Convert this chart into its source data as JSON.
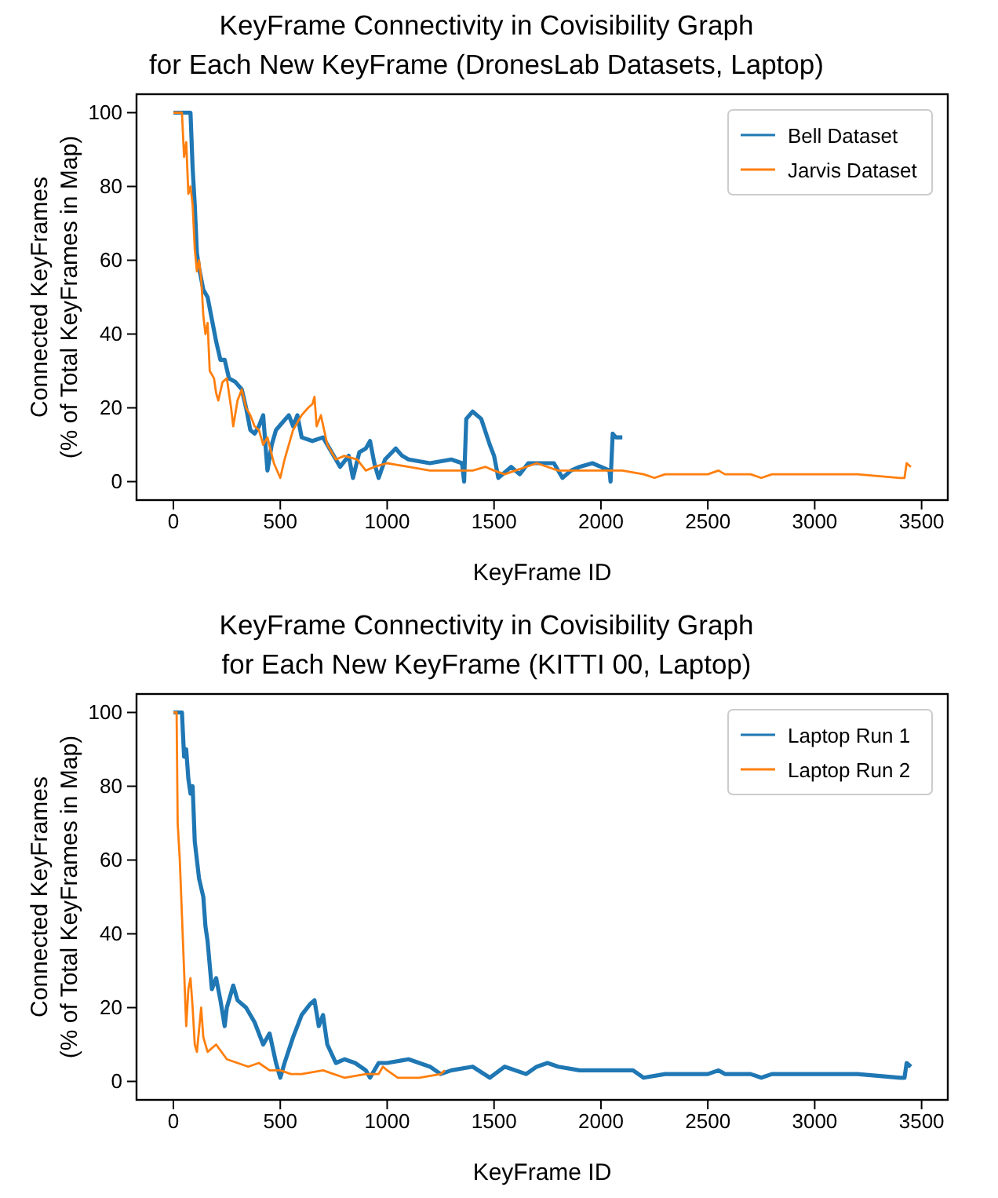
{
  "chart_data": [
    {
      "type": "line",
      "title": "KeyFrame Connectivity in Covisibility Graph\nfor Each New KeyFrame (DronesLab Datasets, Laptop)",
      "xlabel": "KeyFrame ID",
      "ylabel": "Connected KeyFrames\n(% of Total KeyFrames in Map)",
      "xlim": [
        -172.5,
        3622.5
      ],
      "ylim": [
        -5,
        105
      ],
      "xticks": [
        0,
        500,
        1000,
        1500,
        2000,
        2500,
        3000,
        3500
      ],
      "yticks": [
        0,
        20,
        40,
        60,
        80,
        100
      ],
      "legend": "top right",
      "grid": false,
      "line_style": "solid",
      "marker": "none",
      "series": [
        {
          "name": "Bell Dataset",
          "color": "#1f77b4",
          "x": [
            0,
            80,
            90,
            100,
            110,
            120,
            140,
            160,
            180,
            200,
            220,
            240,
            260,
            290,
            320,
            340,
            360,
            380,
            400,
            420,
            440,
            460,
            480,
            510,
            540,
            560,
            580,
            600,
            650,
            700,
            740,
            780,
            820,
            840,
            870,
            900,
            920,
            940,
            960,
            990,
            1040,
            1070,
            1100,
            1200,
            1300,
            1350,
            1360,
            1370,
            1400,
            1440,
            1480,
            1500,
            1520,
            1560,
            1580,
            1620,
            1660,
            1720,
            1780,
            1820,
            1860,
            1900,
            1960,
            2000,
            2040,
            2045,
            2055,
            2070,
            2100
          ],
          "values": [
            100,
            100,
            85,
            75,
            62,
            58,
            52,
            50,
            44,
            38,
            33,
            33,
            28,
            27,
            25,
            20,
            14,
            13,
            15,
            18,
            3,
            10,
            14,
            16,
            18,
            15,
            18,
            12,
            11,
            12,
            8,
            4,
            7,
            1,
            8,
            9,
            11,
            5,
            1,
            6,
            9,
            7,
            6,
            5,
            6,
            5,
            0,
            17,
            19,
            17,
            10,
            7,
            1,
            3,
            4,
            2,
            5,
            5,
            5,
            1,
            3,
            4,
            5,
            4,
            3,
            0,
            13,
            12,
            12
          ]
        },
        {
          "name": "Jarvis Dataset",
          "color": "#ff7f0e",
          "x": [
            0,
            40,
            50,
            60,
            70,
            80,
            90,
            100,
            110,
            120,
            130,
            140,
            150,
            160,
            170,
            190,
            200,
            210,
            230,
            250,
            270,
            280,
            300,
            320,
            340,
            360,
            380,
            400,
            420,
            440,
            470,
            500,
            520,
            560,
            600,
            630,
            650,
            660,
            670,
            690,
            720,
            760,
            800,
            860,
            900,
            940,
            1000,
            1100,
            1200,
            1300,
            1400,
            1460,
            1500,
            1550,
            1600,
            1650,
            1700,
            1750,
            1800,
            1900,
            2000,
            2100,
            2200,
            2250,
            2300,
            2500,
            2550,
            2580,
            2700,
            2750,
            2800,
            3000,
            3200,
            3400,
            3420,
            3430,
            3450
          ],
          "values": [
            100,
            100,
            88,
            92,
            78,
            80,
            75,
            63,
            57,
            60,
            55,
            45,
            40,
            43,
            30,
            28,
            24,
            22,
            27,
            28,
            20,
            15,
            22,
            25,
            20,
            18,
            15,
            14,
            10,
            12,
            5,
            1,
            6,
            14,
            18,
            20,
            21,
            23,
            15,
            18,
            10,
            6,
            7,
            6,
            3,
            4,
            5,
            4,
            3,
            3,
            3,
            4,
            3,
            2,
            3,
            4,
            5,
            4,
            3,
            3,
            3,
            3,
            2,
            1,
            2,
            2,
            3,
            2,
            2,
            1,
            2,
            2,
            2,
            1,
            1,
            5,
            4
          ]
        }
      ]
    },
    {
      "type": "line",
      "title": "KeyFrame Connectivity in Covisibility Graph\nfor Each New KeyFrame (KITTI 00, Laptop)",
      "xlabel": "KeyFrame ID",
      "ylabel": "Connected KeyFrames\n(% of Total KeyFrames in Map)",
      "xlim": [
        -172.5,
        3622.5
      ],
      "ylim": [
        -5,
        105
      ],
      "xticks": [
        0,
        500,
        1000,
        1500,
        2000,
        2500,
        3000,
        3500
      ],
      "yticks": [
        0,
        20,
        40,
        60,
        80,
        100
      ],
      "legend": "top right",
      "grid": false,
      "line_style": "solid",
      "marker": "none",
      "series": [
        {
          "name": "Laptop Run 1",
          "color": "#1f77b4",
          "x": [
            0,
            40,
            50,
            60,
            70,
            80,
            90,
            100,
            110,
            120,
            140,
            150,
            160,
            180,
            200,
            220,
            240,
            250,
            280,
            300,
            340,
            380,
            420,
            450,
            480,
            500,
            520,
            560,
            600,
            640,
            660,
            680,
            700,
            720,
            760,
            800,
            850,
            900,
            920,
            960,
            1000,
            1100,
            1200,
            1250,
            1300,
            1400,
            1480,
            1550,
            1650,
            1700,
            1750,
            1800,
            1900,
            2000,
            2150,
            2200,
            2300,
            2500,
            2550,
            2580,
            2700,
            2750,
            2800,
            3000,
            3200,
            3400,
            3420,
            3430,
            3450
          ],
          "values": [
            100,
            100,
            88,
            90,
            82,
            78,
            80,
            65,
            60,
            55,
            50,
            42,
            38,
            25,
            28,
            22,
            15,
            20,
            26,
            22,
            20,
            16,
            10,
            13,
            5,
            1,
            5,
            12,
            18,
            21,
            22,
            15,
            18,
            10,
            5,
            6,
            5,
            3,
            1,
            5,
            5,
            6,
            4,
            2,
            3,
            4,
            1,
            4,
            2,
            4,
            5,
            4,
            3,
            3,
            3,
            1,
            2,
            2,
            3,
            2,
            2,
            1,
            2,
            2,
            2,
            1,
            1,
            5,
            4
          ]
        },
        {
          "name": "Laptop Run 2",
          "color": "#ff7f0e",
          "x": [
            0,
            15,
            20,
            30,
            40,
            50,
            60,
            70,
            80,
            90,
            100,
            110,
            130,
            140,
            160,
            200,
            250,
            300,
            350,
            400,
            450,
            500,
            550,
            600,
            700,
            750,
            800,
            900,
            960,
            980,
            1000,
            1050,
            1150,
            1250,
            1270
          ],
          "values": [
            100,
            100,
            70,
            60,
            45,
            30,
            15,
            25,
            28,
            20,
            10,
            8,
            20,
            12,
            8,
            10,
            6,
            5,
            4,
            5,
            3,
            3,
            2,
            2,
            3,
            2,
            1,
            2,
            2,
            4,
            3,
            1,
            1,
            2,
            3
          ]
        }
      ]
    }
  ]
}
